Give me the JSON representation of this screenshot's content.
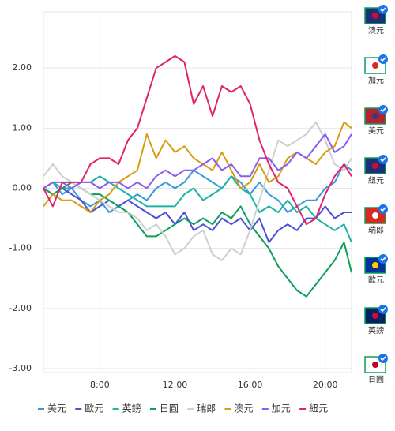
{
  "chart_data": {
    "type": "line",
    "x": [
      5,
      5.5,
      6,
      6.5,
      7,
      7.5,
      8,
      8.5,
      9,
      9.5,
      10,
      10.5,
      11,
      11.5,
      12,
      12.5,
      13,
      13.5,
      14,
      14.5,
      15,
      15.5,
      16,
      16.5,
      17,
      17.5,
      18,
      18.5,
      19,
      19.5,
      20,
      20.5,
      21,
      21.4
    ],
    "xlim": [
      5,
      21.4
    ],
    "xticks": [
      {
        "value": 8,
        "label": "8:00"
      },
      {
        "value": 12,
        "label": "12:00"
      },
      {
        "value": 16,
        "label": "16:00"
      },
      {
        "value": 20,
        "label": "20:00"
      }
    ],
    "ylim": [
      -3,
      3
    ],
    "yticks": [
      {
        "value": 2,
        "label": "2.00"
      },
      {
        "value": 1,
        "label": "1.00"
      },
      {
        "value": 0,
        "label": "0.00"
      },
      {
        "value": -1,
        "label": "-1.00"
      },
      {
        "value": -2,
        "label": "-2.00"
      },
      {
        "value": -3,
        "label": "-3.00"
      }
    ],
    "grid": true,
    "legend": "bottom",
    "series": [
      {
        "name": "美元",
        "color": "#3a9ad9",
        "values": [
          0.0,
          0.1,
          -0.1,
          0.0,
          -0.2,
          -0.3,
          -0.2,
          -0.4,
          -0.3,
          -0.2,
          -0.1,
          -0.2,
          0.0,
          0.1,
          0.0,
          0.1,
          0.3,
          0.2,
          0.1,
          0.0,
          0.2,
          0.1,
          -0.1,
          0.1,
          -0.1,
          -0.2,
          -0.4,
          -0.3,
          -0.2,
          -0.2,
          0.0,
          0.1,
          0.4,
          0.3
        ]
      },
      {
        "name": "歐元",
        "color": "#4b50d6",
        "values": [
          0.0,
          -0.1,
          0.0,
          -0.1,
          -0.2,
          -0.4,
          -0.3,
          -0.2,
          -0.3,
          -0.2,
          -0.3,
          -0.4,
          -0.5,
          -0.4,
          -0.6,
          -0.4,
          -0.7,
          -0.6,
          -0.7,
          -0.5,
          -0.6,
          -0.5,
          -0.7,
          -0.5,
          -0.9,
          -0.7,
          -0.6,
          -0.7,
          -0.5,
          -0.5,
          -0.3,
          -0.5,
          -0.4,
          -0.4
        ]
      },
      {
        "name": "英鎊",
        "color": "#1fb3a3",
        "values": [
          0.0,
          0.1,
          0.0,
          0.0,
          0.1,
          0.1,
          0.2,
          0.1,
          0.0,
          -0.1,
          -0.2,
          -0.3,
          -0.3,
          -0.3,
          -0.3,
          -0.1,
          0.0,
          -0.2,
          -0.1,
          0.0,
          0.2,
          0.0,
          -0.1,
          -0.4,
          -0.3,
          -0.4,
          -0.2,
          -0.4,
          -0.3,
          -0.5,
          -0.6,
          -0.7,
          -0.6,
          -0.9
        ]
      },
      {
        "name": "日圓",
        "color": "#0e9f5a",
        "values": [
          0.0,
          -0.1,
          0.0,
          0.1,
          0.0,
          -0.1,
          -0.1,
          -0.2,
          -0.3,
          -0.4,
          -0.6,
          -0.8,
          -0.8,
          -0.7,
          -0.6,
          -0.5,
          -0.6,
          -0.5,
          -0.6,
          -0.4,
          -0.5,
          -0.3,
          -0.6,
          -0.8,
          -1.0,
          -1.3,
          -1.5,
          -1.7,
          -1.8,
          -1.6,
          -1.4,
          -1.2,
          -0.9,
          -1.4
        ]
      },
      {
        "name": "瑞郎",
        "color": "#cfcfcf",
        "values": [
          0.2,
          0.4,
          0.2,
          0.1,
          0.0,
          -0.1,
          -0.2,
          -0.3,
          -0.4,
          -0.4,
          -0.5,
          -0.7,
          -0.6,
          -0.8,
          -1.1,
          -1.0,
          -0.8,
          -0.7,
          -1.1,
          -1.2,
          -1.0,
          -1.1,
          -0.7,
          -0.2,
          0.3,
          0.8,
          0.7,
          0.8,
          0.9,
          1.1,
          0.8,
          0.4,
          0.3,
          0.5
        ]
      },
      {
        "name": "澳元",
        "color": "#d69e12",
        "values": [
          -0.3,
          -0.1,
          -0.2,
          -0.2,
          -0.3,
          -0.4,
          -0.2,
          -0.1,
          0.1,
          0.2,
          0.3,
          0.9,
          0.5,
          0.8,
          0.6,
          0.7,
          0.5,
          0.4,
          0.3,
          0.6,
          0.3,
          0.0,
          0.1,
          0.4,
          0.1,
          0.2,
          0.5,
          0.6,
          0.5,
          0.4,
          0.6,
          0.7,
          1.1,
          1.0
        ]
      },
      {
        "name": "加元",
        "color": "#8a5cf0",
        "values": [
          0.0,
          0.1,
          0.1,
          0.0,
          0.1,
          0.1,
          0.0,
          0.1,
          0.1,
          0.0,
          0.1,
          0.0,
          0.2,
          0.3,
          0.2,
          0.3,
          0.3,
          0.4,
          0.5,
          0.3,
          0.4,
          0.2,
          0.2,
          0.5,
          0.5,
          0.3,
          0.4,
          0.6,
          0.5,
          0.7,
          0.9,
          0.6,
          0.7,
          0.9
        ]
      },
      {
        "name": "紐元",
        "color": "#e0236c",
        "values": [
          0.0,
          -0.3,
          0.1,
          0.1,
          0.1,
          0.4,
          0.5,
          0.5,
          0.4,
          0.8,
          1.0,
          1.5,
          2.0,
          2.1,
          2.2,
          2.1,
          1.4,
          1.7,
          1.2,
          1.7,
          1.6,
          1.7,
          1.4,
          0.8,
          0.4,
          0.1,
          0.0,
          -0.3,
          -0.6,
          -0.5,
          -0.1,
          0.2,
          0.4,
          0.2
        ]
      }
    ]
  },
  "selector": {
    "items": [
      "澳元",
      "加元",
      "美元",
      "紐元",
      "瑞郎",
      "歐元",
      "英鎊",
      "日圓"
    ]
  }
}
